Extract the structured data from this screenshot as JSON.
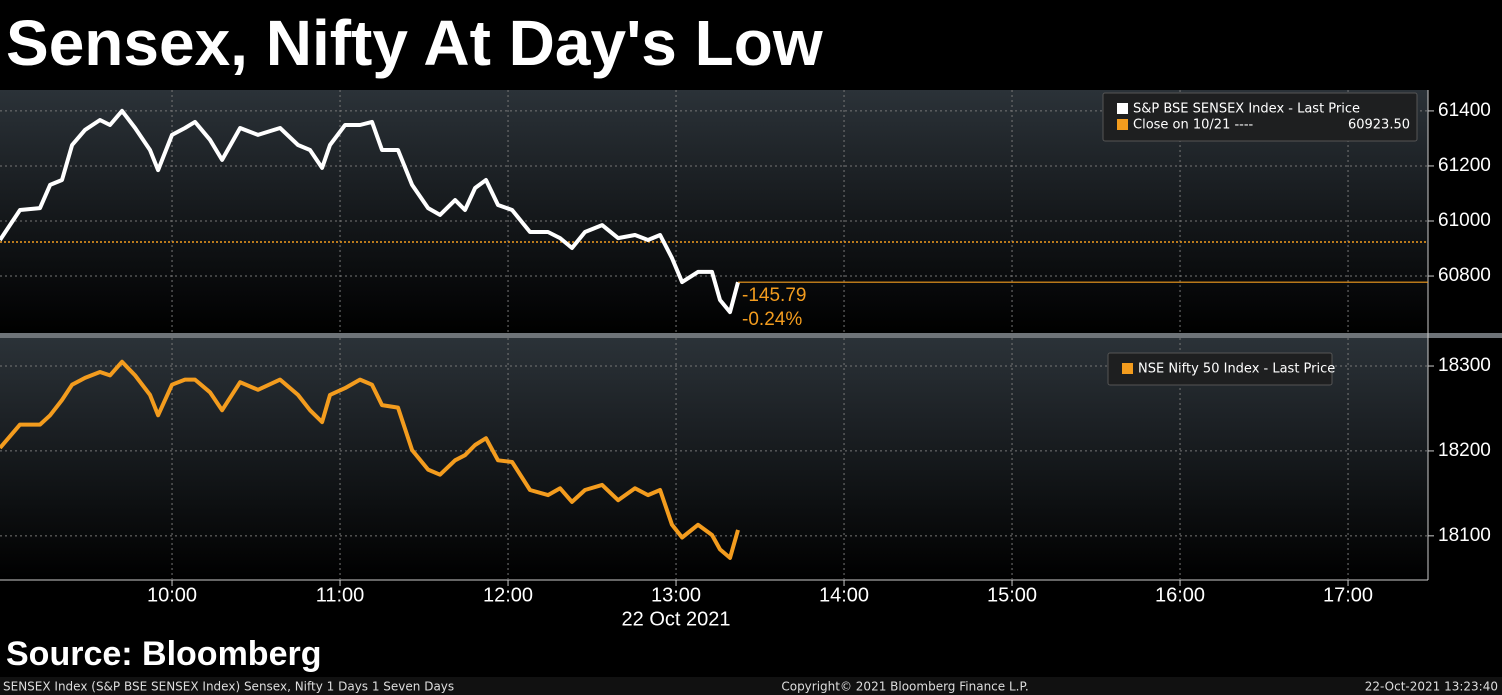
{
  "title": "Sensex, Nifty At Day's Low",
  "source": "Source: Bloomberg",
  "footer": {
    "left": "SENSEX Index (S&P BSE SENSEX Index) Sensex, Nifty 1 Days 1 Seven Days",
    "center": "Copyright© 2021 Bloomberg Finance L.P.",
    "right": "22-Oct-2021 13:23:40"
  },
  "chart_data": [
    {
      "type": "line",
      "x": [
        8.976,
        9.095,
        9.214,
        9.274,
        9.345,
        9.405,
        9.482,
        9.571,
        9.631,
        9.702,
        9.78,
        9.869,
        9.917,
        10.0,
        10.077,
        10.137,
        10.226,
        10.298,
        10.405,
        10.512,
        10.643,
        10.75,
        10.821,
        10.893,
        10.94,
        11.03,
        11.119,
        11.19,
        11.25,
        11.345,
        11.429,
        11.524,
        11.595,
        11.685,
        11.744,
        11.804,
        11.869,
        11.94,
        12.024,
        12.131,
        12.238,
        12.31,
        12.381,
        12.458,
        12.56,
        12.655,
        12.756,
        12.833,
        12.905,
        12.976,
        13.036,
        13.131,
        13.214,
        13.262,
        13.321,
        13.369
      ],
      "series": [
        {
          "name": "S&P BSE SENSEX Index - Last Price",
          "color": "#ffffff",
          "values": [
            60931,
            61040,
            61047,
            61131,
            61149,
            61276,
            61331,
            61367,
            61349,
            61400,
            61338,
            61258,
            61185,
            61313,
            61338,
            61360,
            61295,
            61222,
            61338,
            61313,
            61338,
            61276,
            61258,
            61193,
            61276,
            61349,
            61349,
            61360,
            61258,
            61258,
            61131,
            61047,
            61022,
            61076,
            61040,
            61120,
            61149,
            61058,
            61040,
            60960,
            60960,
            60938,
            60902,
            60960,
            60985,
            60938,
            60949,
            60931,
            60949,
            60865,
            60778,
            60815,
            60815,
            60713,
            60669,
            60777.71
          ]
        }
      ],
      "reference": {
        "name": "Close on 10/21 ----",
        "value": 60923.5,
        "value_label": "60923.50",
        "color": "#f39c1e"
      },
      "change_labels": [
        "-145.79",
        "-0.24%"
      ],
      "last_price_line": true,
      "xlim": [
        8.976,
        17.476
      ],
      "xticks": [
        10,
        11,
        12,
        13,
        14,
        15,
        16,
        17
      ],
      "ylim": [
        60593,
        61476
      ],
      "yticks": [
        60800,
        61000,
        61200,
        61400
      ],
      "grid": true
    },
    {
      "type": "line",
      "x": [
        8.976,
        9.095,
        9.214,
        9.274,
        9.345,
        9.405,
        9.482,
        9.571,
        9.631,
        9.702,
        9.78,
        9.869,
        9.917,
        10.0,
        10.077,
        10.137,
        10.226,
        10.298,
        10.405,
        10.512,
        10.643,
        10.75,
        10.821,
        10.893,
        10.94,
        11.03,
        11.119,
        11.19,
        11.25,
        11.345,
        11.429,
        11.524,
        11.595,
        11.685,
        11.744,
        11.804,
        11.869,
        11.94,
        12.024,
        12.131,
        12.238,
        12.31,
        12.381,
        12.458,
        12.56,
        12.655,
        12.756,
        12.833,
        12.905,
        12.976,
        13.036,
        13.131,
        13.214,
        13.262,
        13.321,
        13.369
      ],
      "series": [
        {
          "name": "NSE Nifty 50 Index - Last Price",
          "color": "#f39c1e",
          "values": [
            18203.5,
            18231,
            18231,
            18242,
            18260,
            18278,
            18286,
            18293,
            18289,
            18305,
            18289,
            18266,
            18242,
            18278,
            18284,
            18284,
            18269,
            18248,
            18281,
            18272,
            18284,
            18266,
            18248,
            18234,
            18266,
            18274,
            18284,
            18278,
            18254,
            18251,
            18201,
            18178,
            18172,
            18189,
            18195,
            18207,
            18215,
            18189,
            18187,
            18154,
            18148,
            18156,
            18140,
            18154,
            18160,
            18142,
            18156,
            18148,
            18154,
            18113,
            18098,
            18113,
            18101,
            18084,
            18074,
            18107
          ]
        }
      ],
      "xlim": [
        8.976,
        17.476
      ],
      "xticks": [
        {
          "value": 10,
          "label": "10:00"
        },
        {
          "value": 11,
          "label": "11:00"
        },
        {
          "value": 12,
          "label": "12:00"
        },
        {
          "value": 13,
          "label": "13:00"
        },
        {
          "value": 14,
          "label": "14:00"
        },
        {
          "value": 15,
          "label": "15:00"
        },
        {
          "value": 16,
          "label": "16:00"
        },
        {
          "value": 17,
          "label": "17:00"
        }
      ],
      "xlabel": "22 Oct 2021",
      "ylim": [
        18048,
        18333
      ],
      "yticks": [
        18100,
        18200,
        18300
      ],
      "grid": true
    }
  ]
}
